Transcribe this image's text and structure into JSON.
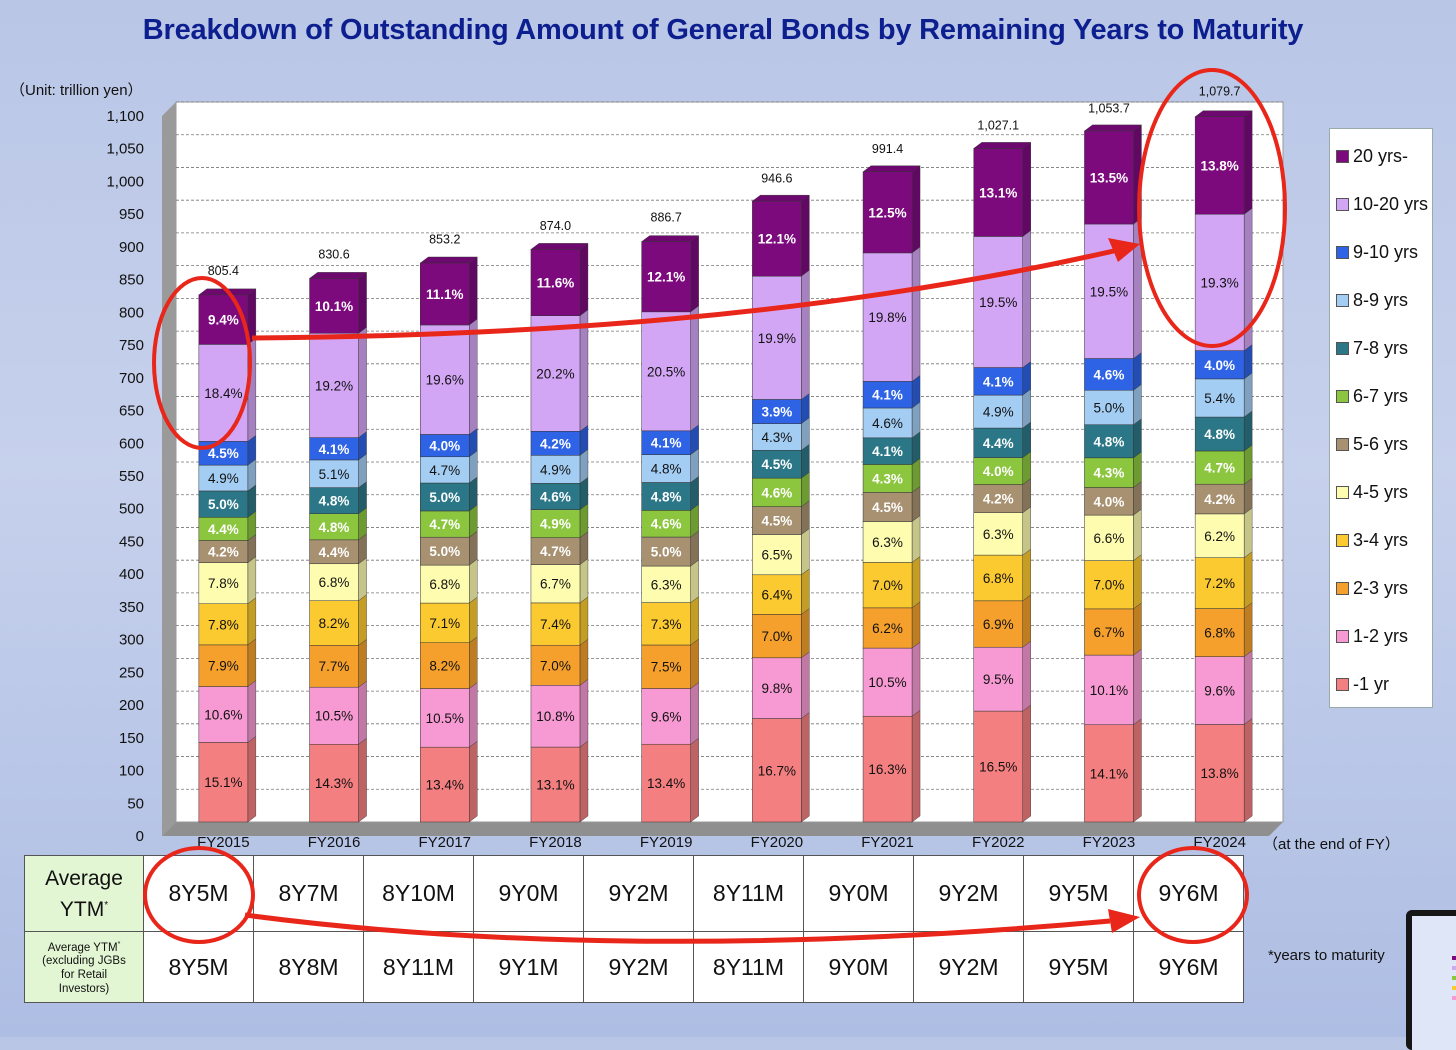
{
  "title": "Breakdown of Outstanding Amount of General Bonds by Remaining Years to Maturity",
  "unit_label": "（Unit: trillion yen）",
  "end_note": "（at the end of FY）",
  "footnote": "*years to maturity",
  "chart_data": {
    "type": "bar",
    "stacked": true,
    "title": "Breakdown of Outstanding Amount of General Bonds by Remaining Years to Maturity",
    "ylabel": "（Unit: trillion yen）",
    "xlabel": "（at the end of FY）",
    "ylim": [
      0,
      1100
    ],
    "ytick_step": 50,
    "ytick_labels": [
      "0",
      "50",
      "100",
      "150",
      "200",
      "250",
      "300",
      "350",
      "400",
      "450",
      "500",
      "550",
      "600",
      "650",
      "700",
      "750",
      "800",
      "850",
      "900",
      "950",
      "1,000",
      "1,050",
      "1,100"
    ],
    "grid": true,
    "legend_position": "right",
    "categories": [
      "FY2015",
      "FY2016",
      "FY2017",
      "FY2018",
      "FY2019",
      "FY2020",
      "FY2021",
      "FY2022",
      "FY2023",
      "FY2024"
    ],
    "totals": [
      805.4,
      830.6,
      853.2,
      874.0,
      886.7,
      946.6,
      991.4,
      1027.1,
      1053.7,
      1079.7
    ],
    "total_labels": [
      "805.4",
      "830.6",
      "853.2",
      "874.0",
      "886.7",
      "946.6",
      "991.4",
      "1,027.1",
      "1,053.7",
      "1,079.7"
    ],
    "series": [
      {
        "name": "-1 yr",
        "color": "#f47f80",
        "pct": [
          15.1,
          14.3,
          13.4,
          13.1,
          13.4,
          16.7,
          16.3,
          16.5,
          14.1,
          13.8
        ]
      },
      {
        "name": "1-2 yrs",
        "color": "#f79ad3",
        "pct": [
          10.6,
          10.5,
          10.5,
          10.8,
          9.6,
          9.8,
          10.5,
          9.5,
          10.1,
          9.6
        ]
      },
      {
        "name": "2-3 yrs",
        "color": "#f5a02c",
        "pct": [
          7.9,
          7.7,
          8.2,
          7.0,
          7.5,
          7.0,
          6.2,
          6.9,
          6.7,
          6.8
        ]
      },
      {
        "name": "3-4 yrs",
        "color": "#fbc930",
        "pct": [
          7.8,
          8.2,
          7.1,
          7.4,
          7.3,
          6.4,
          7.0,
          6.8,
          7.0,
          7.2
        ]
      },
      {
        "name": "4-5 yrs",
        "color": "#fdfcaf",
        "pct": [
          7.8,
          6.8,
          6.8,
          6.7,
          6.3,
          6.5,
          6.3,
          6.3,
          6.6,
          6.2
        ]
      },
      {
        "name": "5-6 yrs",
        "color": "#a89171",
        "pct": [
          4.2,
          4.4,
          5.0,
          4.7,
          5.0,
          4.5,
          4.5,
          4.2,
          4.0,
          4.2
        ]
      },
      {
        "name": "6-7 yrs",
        "color": "#8cc63f",
        "pct": [
          4.4,
          4.8,
          4.7,
          4.9,
          4.6,
          4.6,
          4.3,
          4.0,
          4.3,
          4.7
        ]
      },
      {
        "name": "7-8 yrs",
        "color": "#2b7787",
        "pct": [
          5.0,
          4.8,
          5.0,
          4.6,
          4.8,
          4.5,
          4.1,
          4.4,
          4.8,
          4.8
        ]
      },
      {
        "name": "8-9 yrs",
        "color": "#a3cdf3",
        "pct": [
          4.9,
          5.1,
          4.7,
          4.9,
          4.8,
          4.3,
          4.6,
          4.9,
          5.0,
          5.4
        ]
      },
      {
        "name": "9-10 yrs",
        "color": "#2e63e6",
        "pct": [
          4.5,
          4.1,
          4.0,
          4.2,
          4.1,
          3.9,
          4.1,
          4.1,
          4.6,
          4.0
        ]
      },
      {
        "name": "10-20 yrs",
        "color": "#d3a6f5",
        "pct": [
          18.4,
          19.2,
          19.6,
          20.2,
          20.5,
          19.9,
          19.8,
          19.5,
          19.5,
          19.3
        ]
      },
      {
        "name": "20 yrs-",
        "color": "#7c0a7d",
        "pct": [
          9.4,
          10.1,
          11.1,
          11.6,
          12.1,
          12.1,
          12.5,
          13.1,
          13.5,
          13.8
        ]
      }
    ]
  },
  "table": {
    "row1_header": {
      "line1": "Average",
      "line2": "YTM",
      "mark": "*"
    },
    "row2_header": {
      "line1": "Average YTM",
      "mark": "*",
      "line2": "(excluding JGBs",
      "line3": "for Retail",
      "line4": "Investors)"
    },
    "row1": [
      "8Y5M",
      "8Y7M",
      "8Y10M",
      "9Y0M",
      "9Y2M",
      "8Y11M",
      "9Y0M",
      "9Y2M",
      "9Y5M",
      "9Y6M"
    ],
    "row2": [
      "8Y5M",
      "8Y8M",
      "8Y11M",
      "9Y1M",
      "9Y2M",
      "8Y11M",
      "9Y0M",
      "9Y2M",
      "9Y5M",
      "9Y6M"
    ]
  },
  "annotation_color": "#e8261a"
}
